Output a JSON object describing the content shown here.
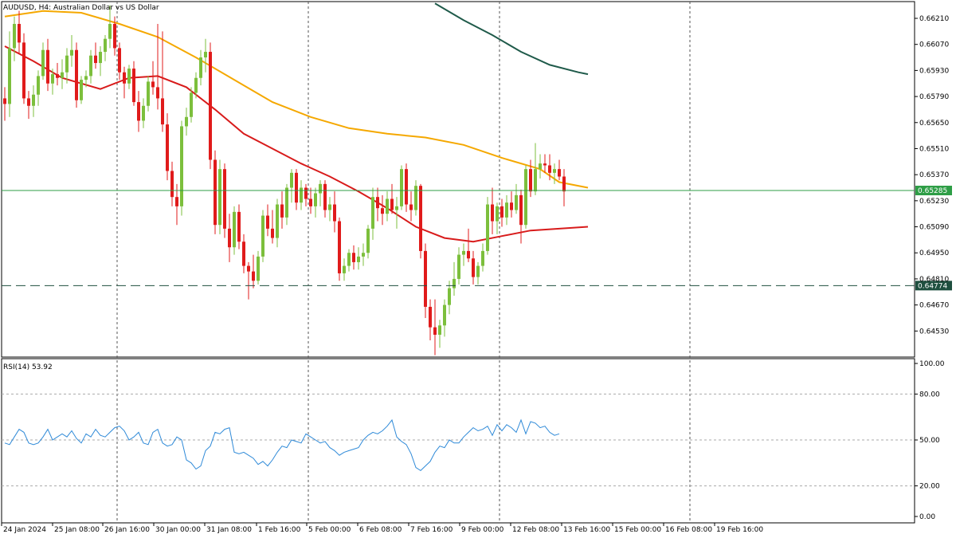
{
  "window": {
    "title": "AUDUSD, H4:  Australian Dollar vs US Dollar"
  },
  "colors": {
    "bull": "#7cbf3c",
    "bear": "#e01b1b",
    "ma_fast": "#f5a800",
    "ma_mid": "#d81b1b",
    "ma_slow": "#1f5a4a",
    "rsi": "#2f8ad8",
    "hline": "#2e9e46",
    "dashed_level": "#1f4f3f",
    "grid": "#d0d0d0",
    "frame": "#000000"
  },
  "chart_data": [
    {
      "type": "candlestick",
      "symbol": "AUDUSD",
      "timeframe": "H4",
      "title": "AUDUSD, H4:  Australian Dollar vs US Dollar",
      "ylim": [
        0.6439,
        0.663
      ],
      "y_ticks": [
        "0.66210",
        "0.66070",
        "0.65930",
        "0.65790",
        "0.65650",
        "0.65510",
        "0.65370",
        "0.65230",
        "0.65090",
        "0.64950",
        "0.64810",
        "0.64670",
        "0.64530"
      ],
      "x_ticks": [
        "24 Jan 2024",
        "25 Jan 08:00",
        "26 Jan 16:00",
        "30 Jan 00:00",
        "31 Jan 08:00",
        "1 Feb 16:00",
        "5 Feb 00:00",
        "6 Feb 08:00",
        "7 Feb 16:00",
        "9 Feb 00:00",
        "12 Feb 08:00",
        "13 Feb 16:00",
        "15 Feb 00:00",
        "16 Feb 08:00",
        "19 Feb 16:00"
      ],
      "current_price": "0.65285",
      "level_line": "0.64774",
      "candles": [
        {
          "o": 0.6578,
          "h": 0.6584,
          "l": 0.6566,
          "c": 0.6575
        },
        {
          "o": 0.6575,
          "h": 0.6614,
          "l": 0.6568,
          "c": 0.6605
        },
        {
          "o": 0.6605,
          "h": 0.6622,
          "l": 0.6598,
          "c": 0.6618
        },
        {
          "o": 0.6618,
          "h": 0.6625,
          "l": 0.6602,
          "c": 0.6608
        },
        {
          "o": 0.6608,
          "h": 0.6613,
          "l": 0.6575,
          "c": 0.6578
        },
        {
          "o": 0.6578,
          "h": 0.6582,
          "l": 0.6567,
          "c": 0.6574
        },
        {
          "o": 0.6574,
          "h": 0.6585,
          "l": 0.6568,
          "c": 0.658
        },
        {
          "o": 0.658,
          "h": 0.6593,
          "l": 0.6574,
          "c": 0.659
        },
        {
          "o": 0.659,
          "h": 0.6608,
          "l": 0.6588,
          "c": 0.6604
        },
        {
          "o": 0.6604,
          "h": 0.661,
          "l": 0.6582,
          "c": 0.6586
        },
        {
          "o": 0.6586,
          "h": 0.6594,
          "l": 0.658,
          "c": 0.6591
        },
        {
          "o": 0.6591,
          "h": 0.6597,
          "l": 0.6585,
          "c": 0.6589
        },
        {
          "o": 0.6589,
          "h": 0.6599,
          "l": 0.6583,
          "c": 0.6592
        },
        {
          "o": 0.6592,
          "h": 0.6605,
          "l": 0.6586,
          "c": 0.6601
        },
        {
          "o": 0.6601,
          "h": 0.6612,
          "l": 0.6595,
          "c": 0.6604
        },
        {
          "o": 0.6604,
          "h": 0.6608,
          "l": 0.6573,
          "c": 0.6577
        },
        {
          "o": 0.6577,
          "h": 0.659,
          "l": 0.6575,
          "c": 0.6588
        },
        {
          "o": 0.6588,
          "h": 0.6593,
          "l": 0.6584,
          "c": 0.659
        },
        {
          "o": 0.659,
          "h": 0.6604,
          "l": 0.6586,
          "c": 0.6601
        },
        {
          "o": 0.6601,
          "h": 0.6608,
          "l": 0.6594,
          "c": 0.6597
        },
        {
          "o": 0.6597,
          "h": 0.6606,
          "l": 0.659,
          "c": 0.6603
        },
        {
          "o": 0.6603,
          "h": 0.6612,
          "l": 0.6598,
          "c": 0.661
        },
        {
          "o": 0.661,
          "h": 0.6628,
          "l": 0.6605,
          "c": 0.6618
        },
        {
          "o": 0.6618,
          "h": 0.6622,
          "l": 0.6601,
          "c": 0.6605
        },
        {
          "o": 0.6605,
          "h": 0.6608,
          "l": 0.6588,
          "c": 0.6592
        },
        {
          "o": 0.6592,
          "h": 0.6595,
          "l": 0.6578,
          "c": 0.6586
        },
        {
          "o": 0.6586,
          "h": 0.6596,
          "l": 0.6583,
          "c": 0.6594
        },
        {
          "o": 0.6594,
          "h": 0.6598,
          "l": 0.6574,
          "c": 0.6576
        },
        {
          "o": 0.6576,
          "h": 0.6582,
          "l": 0.656,
          "c": 0.6566
        },
        {
          "o": 0.6566,
          "h": 0.6578,
          "l": 0.6562,
          "c": 0.6574
        },
        {
          "o": 0.6574,
          "h": 0.659,
          "l": 0.6571,
          "c": 0.6587
        },
        {
          "o": 0.6587,
          "h": 0.6598,
          "l": 0.658,
          "c": 0.6584
        },
        {
          "o": 0.6584,
          "h": 0.6618,
          "l": 0.6572,
          "c": 0.6578
        },
        {
          "o": 0.6578,
          "h": 0.6614,
          "l": 0.656,
          "c": 0.6564
        },
        {
          "o": 0.6564,
          "h": 0.657,
          "l": 0.6534,
          "c": 0.6539
        },
        {
          "o": 0.6539,
          "h": 0.6544,
          "l": 0.652,
          "c": 0.6525
        },
        {
          "o": 0.6525,
          "h": 0.6532,
          "l": 0.651,
          "c": 0.652
        },
        {
          "o": 0.652,
          "h": 0.6566,
          "l": 0.6515,
          "c": 0.6563
        },
        {
          "o": 0.6563,
          "h": 0.6573,
          "l": 0.6558,
          "c": 0.6568
        },
        {
          "o": 0.6568,
          "h": 0.6584,
          "l": 0.6565,
          "c": 0.6581
        },
        {
          "o": 0.6581,
          "h": 0.6592,
          "l": 0.6578,
          "c": 0.6589
        },
        {
          "o": 0.6589,
          "h": 0.6604,
          "l": 0.6585,
          "c": 0.66
        },
        {
          "o": 0.66,
          "h": 0.661,
          "l": 0.6592,
          "c": 0.6603
        },
        {
          "o": 0.6603,
          "h": 0.6608,
          "l": 0.654,
          "c": 0.6545
        },
        {
          "o": 0.6545,
          "h": 0.655,
          "l": 0.6505,
          "c": 0.651
        },
        {
          "o": 0.651,
          "h": 0.6545,
          "l": 0.6505,
          "c": 0.654
        },
        {
          "o": 0.654,
          "h": 0.6543,
          "l": 0.6503,
          "c": 0.6508
        },
        {
          "o": 0.6508,
          "h": 0.6516,
          "l": 0.649,
          "c": 0.6498
        },
        {
          "o": 0.6498,
          "h": 0.652,
          "l": 0.6494,
          "c": 0.6517
        },
        {
          "o": 0.6517,
          "h": 0.6521,
          "l": 0.6497,
          "c": 0.6501
        },
        {
          "o": 0.6501,
          "h": 0.6505,
          "l": 0.6484,
          "c": 0.6488
        },
        {
          "o": 0.6488,
          "h": 0.649,
          "l": 0.647,
          "c": 0.6485
        },
        {
          "o": 0.6485,
          "h": 0.6494,
          "l": 0.6476,
          "c": 0.648
        },
        {
          "o": 0.648,
          "h": 0.6496,
          "l": 0.6478,
          "c": 0.6493
        },
        {
          "o": 0.6493,
          "h": 0.6518,
          "l": 0.649,
          "c": 0.6515
        },
        {
          "o": 0.6515,
          "h": 0.6521,
          "l": 0.6504,
          "c": 0.6508
        },
        {
          "o": 0.6508,
          "h": 0.6518,
          "l": 0.65,
          "c": 0.6503
        },
        {
          "o": 0.6503,
          "h": 0.6524,
          "l": 0.6498,
          "c": 0.6521
        },
        {
          "o": 0.6521,
          "h": 0.6528,
          "l": 0.6508,
          "c": 0.6514
        },
        {
          "o": 0.6514,
          "h": 0.6532,
          "l": 0.651,
          "c": 0.653
        },
        {
          "o": 0.653,
          "h": 0.654,
          "l": 0.6522,
          "c": 0.6538
        },
        {
          "o": 0.6538,
          "h": 0.654,
          "l": 0.6518,
          "c": 0.6522
        },
        {
          "o": 0.6522,
          "h": 0.6534,
          "l": 0.6518,
          "c": 0.653
        },
        {
          "o": 0.653,
          "h": 0.6532,
          "l": 0.652,
          "c": 0.6524
        },
        {
          "o": 0.6524,
          "h": 0.653,
          "l": 0.6516,
          "c": 0.652
        },
        {
          "o": 0.652,
          "h": 0.653,
          "l": 0.6514,
          "c": 0.6527
        },
        {
          "o": 0.6527,
          "h": 0.6534,
          "l": 0.652,
          "c": 0.6532
        },
        {
          "o": 0.6532,
          "h": 0.6534,
          "l": 0.6514,
          "c": 0.6518
        },
        {
          "o": 0.6518,
          "h": 0.6525,
          "l": 0.6512,
          "c": 0.6521
        },
        {
          "o": 0.6521,
          "h": 0.6528,
          "l": 0.6506,
          "c": 0.6512
        },
        {
          "o": 0.6512,
          "h": 0.6514,
          "l": 0.648,
          "c": 0.6484
        },
        {
          "o": 0.6484,
          "h": 0.6492,
          "l": 0.648,
          "c": 0.6488
        },
        {
          "o": 0.6488,
          "h": 0.6497,
          "l": 0.6485,
          "c": 0.6495
        },
        {
          "o": 0.6495,
          "h": 0.6499,
          "l": 0.6486,
          "c": 0.649
        },
        {
          "o": 0.649,
          "h": 0.6498,
          "l": 0.6486,
          "c": 0.6493
        },
        {
          "o": 0.6493,
          "h": 0.65,
          "l": 0.6488,
          "c": 0.6495
        },
        {
          "o": 0.6495,
          "h": 0.651,
          "l": 0.6492,
          "c": 0.6508
        },
        {
          "o": 0.6508,
          "h": 0.653,
          "l": 0.6502,
          "c": 0.6525
        },
        {
          "o": 0.6525,
          "h": 0.653,
          "l": 0.6512,
          "c": 0.6519
        },
        {
          "o": 0.6519,
          "h": 0.6526,
          "l": 0.651,
          "c": 0.6516
        },
        {
          "o": 0.6516,
          "h": 0.6528,
          "l": 0.6512,
          "c": 0.6524
        },
        {
          "o": 0.6524,
          "h": 0.6532,
          "l": 0.6516,
          "c": 0.6518
        },
        {
          "o": 0.6518,
          "h": 0.6525,
          "l": 0.6508,
          "c": 0.652
        },
        {
          "o": 0.652,
          "h": 0.6542,
          "l": 0.6518,
          "c": 0.654
        },
        {
          "o": 0.654,
          "h": 0.6543,
          "l": 0.6517,
          "c": 0.6521
        },
        {
          "o": 0.6521,
          "h": 0.6528,
          "l": 0.6512,
          "c": 0.6518
        },
        {
          "o": 0.6518,
          "h": 0.6534,
          "l": 0.6515,
          "c": 0.6531
        },
        {
          "o": 0.6531,
          "h": 0.6532,
          "l": 0.6492,
          "c": 0.6496
        },
        {
          "o": 0.6496,
          "h": 0.65,
          "l": 0.646,
          "c": 0.6466
        },
        {
          "o": 0.6466,
          "h": 0.647,
          "l": 0.6448,
          "c": 0.6455
        },
        {
          "o": 0.6455,
          "h": 0.647,
          "l": 0.644,
          "c": 0.6451
        },
        {
          "o": 0.6451,
          "h": 0.6459,
          "l": 0.6444,
          "c": 0.6456
        },
        {
          "o": 0.6456,
          "h": 0.647,
          "l": 0.645,
          "c": 0.6467
        },
        {
          "o": 0.6467,
          "h": 0.648,
          "l": 0.6462,
          "c": 0.6476
        },
        {
          "o": 0.6476,
          "h": 0.649,
          "l": 0.6472,
          "c": 0.6481
        },
        {
          "o": 0.6481,
          "h": 0.6498,
          "l": 0.6478,
          "c": 0.6494
        },
        {
          "o": 0.6494,
          "h": 0.65,
          "l": 0.6488,
          "c": 0.6496
        },
        {
          "o": 0.6496,
          "h": 0.6508,
          "l": 0.649,
          "c": 0.6492
        },
        {
          "o": 0.6492,
          "h": 0.6496,
          "l": 0.6478,
          "c": 0.6482
        },
        {
          "o": 0.6482,
          "h": 0.649,
          "l": 0.6478,
          "c": 0.6488
        },
        {
          "o": 0.6488,
          "h": 0.65,
          "l": 0.6485,
          "c": 0.6496
        },
        {
          "o": 0.6496,
          "h": 0.6525,
          "l": 0.6494,
          "c": 0.6521
        },
        {
          "o": 0.6521,
          "h": 0.653,
          "l": 0.6505,
          "c": 0.6512
        },
        {
          "o": 0.6512,
          "h": 0.6522,
          "l": 0.6505,
          "c": 0.652
        },
        {
          "o": 0.652,
          "h": 0.6524,
          "l": 0.6509,
          "c": 0.6514
        },
        {
          "o": 0.6514,
          "h": 0.6526,
          "l": 0.651,
          "c": 0.6522
        },
        {
          "o": 0.6522,
          "h": 0.6528,
          "l": 0.6514,
          "c": 0.6518
        },
        {
          "o": 0.6518,
          "h": 0.6532,
          "l": 0.6516,
          "c": 0.6526
        },
        {
          "o": 0.6526,
          "h": 0.6529,
          "l": 0.65,
          "c": 0.651
        },
        {
          "o": 0.651,
          "h": 0.6542,
          "l": 0.6508,
          "c": 0.654
        },
        {
          "o": 0.654,
          "h": 0.6545,
          "l": 0.6525,
          "c": 0.6528
        },
        {
          "o": 0.6528,
          "h": 0.6554,
          "l": 0.6526,
          "c": 0.654
        },
        {
          "o": 0.654,
          "h": 0.6548,
          "l": 0.6535,
          "c": 0.6543
        },
        {
          "o": 0.6543,
          "h": 0.6548,
          "l": 0.6538,
          "c": 0.6542
        },
        {
          "o": 0.6542,
          "h": 0.6548,
          "l": 0.6534,
          "c": 0.6538
        },
        {
          "o": 0.6538,
          "h": 0.6543,
          "l": 0.6532,
          "c": 0.654
        },
        {
          "o": 0.654,
          "h": 0.6545,
          "l": 0.6534,
          "c": 0.6536
        },
        {
          "o": 0.6536,
          "h": 0.654,
          "l": 0.652,
          "c": 0.6528
        }
      ],
      "ma_fast": [
        [
          0,
          0.6622
        ],
        [
          8,
          0.6625
        ],
        [
          16,
          0.6624
        ],
        [
          24,
          0.6618
        ],
        [
          32,
          0.6611
        ],
        [
          40,
          0.66
        ],
        [
          48,
          0.6588
        ],
        [
          56,
          0.6576
        ],
        [
          64,
          0.6568
        ],
        [
          72,
          0.6562
        ],
        [
          80,
          0.6559
        ],
        [
          88,
          0.6557
        ],
        [
          96,
          0.6553
        ],
        [
          104,
          0.6546
        ],
        [
          112,
          0.654
        ],
        [
          116,
          0.6533
        ],
        [
          122,
          0.653
        ]
      ],
      "ma_mid": [
        [
          0,
          0.6606
        ],
        [
          6,
          0.6598
        ],
        [
          12,
          0.6589
        ],
        [
          20,
          0.6583
        ],
        [
          26,
          0.6589
        ],
        [
          32,
          0.659
        ],
        [
          38,
          0.6584
        ],
        [
          44,
          0.6572
        ],
        [
          50,
          0.6559
        ],
        [
          56,
          0.6551
        ],
        [
          62,
          0.6543
        ],
        [
          68,
          0.6536
        ],
        [
          74,
          0.6528
        ],
        [
          80,
          0.6519
        ],
        [
          86,
          0.6509
        ],
        [
          92,
          0.6503
        ],
        [
          98,
          0.6501
        ],
        [
          104,
          0.6504
        ],
        [
          110,
          0.6507
        ],
        [
          116,
          0.6508
        ],
        [
          122,
          0.6509
        ]
      ],
      "ma_slow": [
        [
          90,
          0.6629
        ],
        [
          96,
          0.662
        ],
        [
          102,
          0.6612
        ],
        [
          108,
          0.6603
        ],
        [
          114,
          0.6596
        ],
        [
          120,
          0.6592
        ],
        [
          122,
          0.6591
        ]
      ]
    },
    {
      "type": "line",
      "title": "RSI(14) 53.92",
      "ylim": [
        0,
        100
      ],
      "y_ticks": [
        "100.00",
        "80.00",
        "50.00",
        "20.00",
        "0.00"
      ],
      "levels": [
        80,
        50,
        20
      ],
      "values": [
        48,
        47,
        52,
        57,
        55,
        48,
        47,
        48,
        52,
        57,
        50,
        52,
        54,
        52,
        56,
        51,
        48,
        54,
        52,
        57,
        53,
        52,
        55,
        58,
        59,
        56,
        50,
        52,
        55,
        48,
        47,
        55,
        57,
        48,
        46,
        47,
        52,
        50,
        37,
        35,
        31,
        33,
        43,
        46,
        55,
        54,
        57,
        58,
        42,
        41,
        42,
        40,
        38,
        34,
        36,
        33,
        37,
        42,
        46,
        45,
        50,
        49,
        48,
        54,
        52,
        50,
        48,
        49,
        45,
        43,
        40,
        42,
        43,
        44,
        45,
        50,
        53,
        55,
        54,
        56,
        59,
        63,
        52,
        49,
        47,
        41,
        32,
        30,
        33,
        36,
        42,
        46,
        45,
        50,
        48,
        48,
        52,
        55,
        58,
        56,
        57,
        59,
        53,
        60,
        56,
        60,
        58,
        55,
        63,
        54,
        62,
        61,
        58,
        59,
        55,
        53,
        54
      ]
    }
  ]
}
